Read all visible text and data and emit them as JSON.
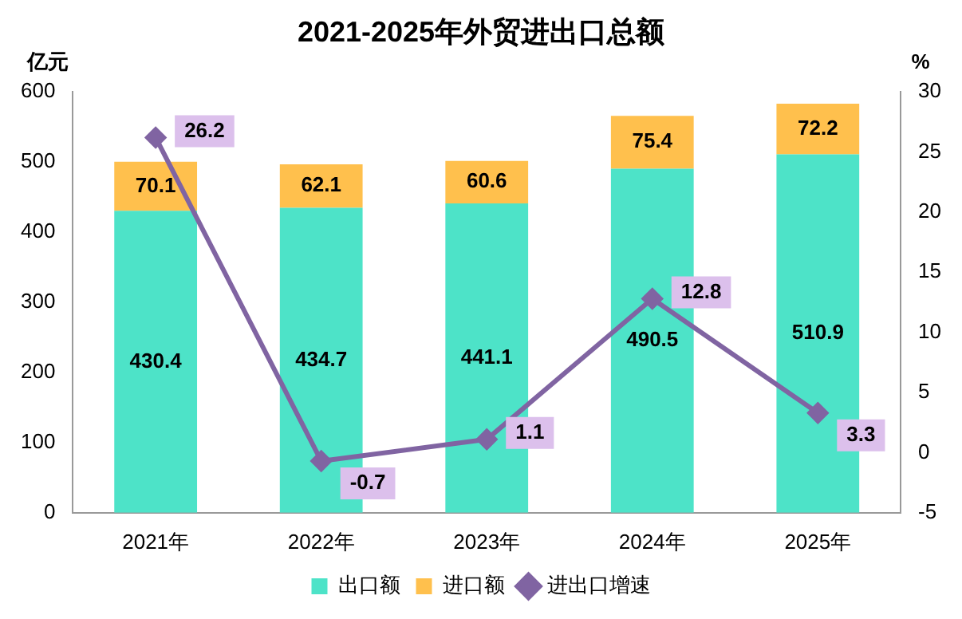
{
  "chart_data": {
    "type": "bar",
    "title": "2021-2025年外贸进出口总额",
    "ylabel": "亿元",
    "y2label": "%",
    "categories": [
      "2021年",
      "2022年",
      "2023年",
      "2024年",
      "2025年"
    ],
    "stacked": true,
    "legend": "bottom",
    "data_labels": true,
    "ylim": [
      0,
      600
    ],
    "yticks": [
      0,
      100,
      200,
      300,
      400,
      500,
      600
    ],
    "y2lim": [
      -5,
      30
    ],
    "y2ticks": [
      -5,
      0,
      5,
      10,
      15,
      20,
      25,
      30
    ],
    "series": [
      {
        "name": "出口额",
        "color": "#4de3c8",
        "values": [
          430.4,
          434.7,
          441.1,
          490.5,
          510.9
        ]
      },
      {
        "name": "进口额",
        "color": "#ffc04d",
        "values": [
          70.1,
          62.1,
          60.6,
          75.4,
          72.2
        ]
      },
      {
        "name": "进出口增速",
        "type": "line",
        "axis": "y2",
        "color": "#8064a2",
        "marker": "diamond",
        "values": [
          26.2,
          -0.7,
          1.1,
          12.8,
          3.3
        ]
      }
    ]
  }
}
